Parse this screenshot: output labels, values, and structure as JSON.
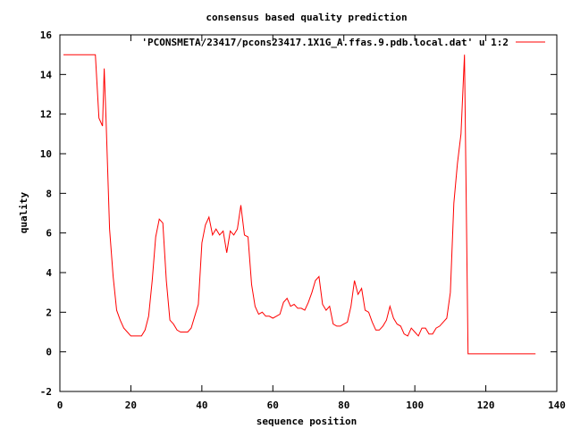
{
  "chart_data": {
    "type": "line",
    "title": "consensus based quality prediction",
    "xlabel": "sequence position",
    "ylabel": "quality",
    "xlim": [
      0,
      140
    ],
    "ylim": [
      -2,
      16
    ],
    "x_ticks": [
      0,
      20,
      40,
      60,
      80,
      100,
      120,
      140
    ],
    "y_ticks": [
      -2,
      0,
      2,
      4,
      6,
      8,
      10,
      12,
      14,
      16
    ],
    "grid": false,
    "legend_position": "top-right",
    "series": [
      {
        "name": "'PCONSMETA/23417/pcons23417.1X1G_A.ffas.9.pdb.local.dat' u 1:2",
        "color": "#ff0000",
        "x": [
          1,
          2,
          3,
          4,
          5,
          6,
          7,
          8,
          9,
          10,
          11,
          12,
          12.5,
          13,
          14,
          15,
          16,
          17,
          18,
          19,
          20,
          21,
          22,
          23,
          24,
          25,
          26,
          27,
          28,
          29,
          30,
          31,
          32,
          33,
          34,
          35,
          36,
          37,
          38,
          39,
          40,
          41,
          42,
          43,
          44,
          45,
          46,
          47,
          48,
          49,
          50,
          51,
          52,
          53,
          54,
          55,
          56,
          57,
          58,
          59,
          60,
          61,
          62,
          63,
          64,
          65,
          66,
          67,
          68,
          69,
          70,
          71,
          72,
          73,
          74,
          75,
          76,
          77,
          78,
          79,
          80,
          81,
          82,
          83,
          84,
          85,
          86,
          87,
          88,
          89,
          90,
          91,
          92,
          93,
          94,
          95,
          96,
          97,
          98,
          99,
          100,
          101,
          102,
          103,
          104,
          105,
          106,
          107,
          108,
          109,
          110,
          111,
          112,
          113,
          114,
          115,
          116,
          117,
          118,
          119,
          120,
          121,
          122,
          123,
          124,
          125,
          126,
          127,
          128,
          129,
          130,
          131,
          132,
          133,
          134
        ],
        "y": [
          15,
          15,
          15,
          15,
          15,
          15,
          15,
          15,
          15,
          15,
          11.8,
          11.4,
          14.3,
          11.8,
          6.2,
          3.8,
          2.1,
          1.6,
          1.2,
          1.0,
          0.8,
          0.8,
          0.8,
          0.8,
          1.1,
          1.8,
          3.6,
          5.8,
          6.7,
          6.5,
          3.6,
          1.6,
          1.4,
          1.1,
          1.0,
          1.0,
          1.0,
          1.2,
          1.8,
          2.4,
          5.5,
          6.4,
          6.8,
          5.9,
          6.2,
          5.9,
          6.1,
          5.0,
          6.1,
          5.9,
          6.2,
          7.4,
          5.9,
          5.8,
          3.4,
          2.3,
          1.9,
          2.0,
          1.8,
          1.8,
          1.7,
          1.8,
          1.9,
          2.5,
          2.7,
          2.3,
          2.4,
          2.2,
          2.2,
          2.1,
          2.5,
          3.0,
          3.6,
          3.8,
          2.4,
          2.1,
          2.3,
          1.4,
          1.3,
          1.3,
          1.4,
          1.5,
          2.3,
          3.6,
          2.9,
          3.2,
          2.1,
          2.0,
          1.5,
          1.1,
          1.1,
          1.3,
          1.6,
          2.3,
          1.7,
          1.4,
          1.3,
          0.9,
          0.8,
          1.2,
          1.0,
          0.8,
          1.2,
          1.2,
          0.9,
          0.9,
          1.2,
          1.3,
          1.5,
          1.7,
          3.0,
          7.5,
          9.5,
          11.0,
          15.0,
          -0.1,
          -0.1,
          -0.1,
          -0.1,
          -0.1,
          -0.1,
          -0.1,
          -0.1,
          -0.1,
          -0.1,
          -0.1,
          -0.1,
          -0.1,
          -0.1,
          -0.1,
          -0.1,
          -0.1,
          -0.1,
          -0.1,
          -0.1
        ]
      }
    ]
  }
}
